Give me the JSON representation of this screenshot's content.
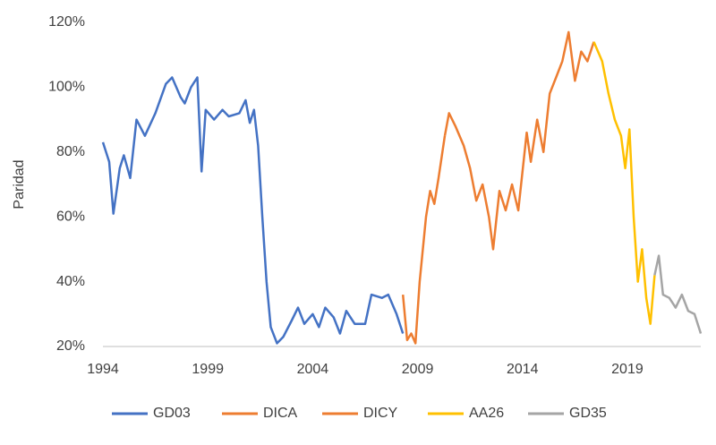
{
  "chart_data": {
    "type": "line",
    "y_label": "Paridad",
    "xlim": [
      1994,
      2022.5
    ],
    "xticks": [
      1994,
      1999,
      2004,
      2009,
      2014,
      2019
    ],
    "ylim": [
      20,
      120
    ],
    "yticks": [
      {
        "value": 20,
        "label": "20%"
      },
      {
        "value": 40,
        "label": "40%"
      },
      {
        "value": 60,
        "label": "60%"
      },
      {
        "value": 80,
        "label": "80%"
      },
      {
        "value": 100,
        "label": "100%"
      },
      {
        "value": 120,
        "label": "120%"
      }
    ],
    "legend": "bottom",
    "series": [
      {
        "name": "GD03",
        "color": "#4472c4",
        "x": [
          1994.0,
          1994.3,
          1994.5,
          1994.8,
          1995.0,
          1995.3,
          1995.6,
          1996.0,
          1996.5,
          1997.0,
          1997.3,
          1997.7,
          1997.9,
          1998.2,
          1998.5,
          1998.7,
          1998.9,
          1999.3,
          1999.7,
          2000.0,
          2000.5,
          2000.8,
          2001.0,
          2001.2,
          2001.4,
          2001.6,
          2001.8,
          2002.0,
          2002.3,
          2002.6,
          2003.0,
          2003.3,
          2003.6,
          2004.0,
          2004.3,
          2004.6,
          2005.0,
          2005.3,
          2005.6,
          2006.0,
          2006.5,
          2006.8,
          2007.3,
          2007.6,
          2008.0,
          2008.3
        ],
        "values": [
          83,
          77,
          61,
          75,
          79,
          72,
          90,
          85,
          92,
          101,
          103,
          97,
          95,
          100,
          103,
          74,
          93,
          90,
          93,
          91,
          92,
          96,
          89,
          93,
          82,
          60,
          40,
          26,
          21,
          23,
          28,
          32,
          27,
          30,
          26,
          32,
          29,
          24,
          31,
          27,
          27,
          36,
          35,
          36,
          30,
          24
        ]
      },
      {
        "name": "DICA",
        "color": "#ed7d31",
        "x": [
          2008.3,
          2008.5,
          2008.7,
          2008.9,
          2009.1,
          2009.4,
          2009.6,
          2009.8,
          2010.0,
          2010.3
        ],
        "values": [
          36,
          22,
          24,
          21,
          40,
          60,
          68,
          64,
          72,
          85
        ]
      },
      {
        "name": "DICY",
        "color": "#ed7d31",
        "x": [
          2010.3,
          2010.5,
          2010.8,
          2011.2,
          2011.5,
          2011.8,
          2012.1,
          2012.4,
          2012.6,
          2012.9,
          2013.2,
          2013.5,
          2013.8,
          2014.2,
          2014.4,
          2014.7,
          2015.0,
          2015.3,
          2015.6,
          2015.9,
          2016.2,
          2016.5,
          2016.8,
          2017.1,
          2017.4
        ],
        "values": [
          85,
          92,
          88,
          82,
          75,
          65,
          70,
          60,
          50,
          68,
          62,
          70,
          62,
          86,
          77,
          90,
          80,
          98,
          103,
          108,
          117,
          102,
          111,
          108,
          114
        ]
      },
      {
        "name": "AA26",
        "color": "#ffc000",
        "x": [
          2017.4,
          2017.8,
          2018.1,
          2018.4,
          2018.7,
          2018.9,
          2019.1,
          2019.3,
          2019.5,
          2019.7,
          2019.9,
          2020.1,
          2020.3
        ],
        "values": [
          114,
          108,
          98,
          90,
          85,
          75,
          87,
          60,
          40,
          50,
          35,
          27,
          42
        ]
      },
      {
        "name": "GD35",
        "color": "#a5a5a5",
        "x": [
          2020.3,
          2020.5,
          2020.7,
          2021.0,
          2021.3,
          2021.6,
          2021.9,
          2022.2,
          2022.5
        ],
        "values": [
          42,
          48,
          36,
          35,
          32,
          36,
          31,
          30,
          24
        ]
      }
    ]
  }
}
